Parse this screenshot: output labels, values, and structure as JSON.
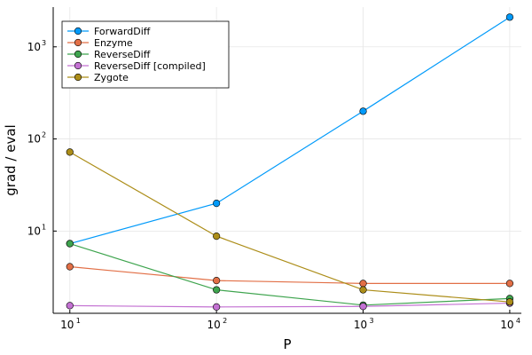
{
  "chart_data": {
    "type": "line",
    "title": "",
    "xlabel": "P",
    "ylabel": "grad / eval",
    "xscale": "log10",
    "yscale": "log10",
    "x": [
      10,
      100,
      1000,
      10000
    ],
    "xlim": [
      7.7,
      12000
    ],
    "ylim": [
      1.28,
      2700
    ],
    "xticks": [
      {
        "value": 10,
        "base": "10",
        "exp": "1"
      },
      {
        "value": 100,
        "base": "10",
        "exp": "2"
      },
      {
        "value": 1000,
        "base": "10",
        "exp": "3"
      },
      {
        "value": 10000,
        "base": "10",
        "exp": "4"
      }
    ],
    "yticks": [
      {
        "value": 10,
        "base": "10",
        "exp": "1"
      },
      {
        "value": 100,
        "base": "10",
        "exp": "2"
      },
      {
        "value": 1000,
        "base": "10",
        "exp": "3"
      }
    ],
    "grid": true,
    "legend_position": "top-left",
    "series": [
      {
        "name": "ForwardDiff",
        "color": "#009AFA",
        "values": [
          7.3,
          20,
          200,
          2100
        ]
      },
      {
        "name": "Enzyme",
        "color": "#E26F46",
        "values": [
          4.1,
          2.9,
          2.7,
          2.7
        ]
      },
      {
        "name": "ReverseDiff",
        "color": "#3EA44E",
        "values": [
          7.3,
          2.3,
          1.57,
          1.85
        ]
      },
      {
        "name": "ReverseDiff [compiled]",
        "color": "#C371D2",
        "values": [
          1.55,
          1.5,
          1.52,
          1.65
        ]
      },
      {
        "name": "Zygote",
        "color": "#AC8D18",
        "values": [
          72,
          8.8,
          2.3,
          1.7
        ]
      }
    ]
  }
}
